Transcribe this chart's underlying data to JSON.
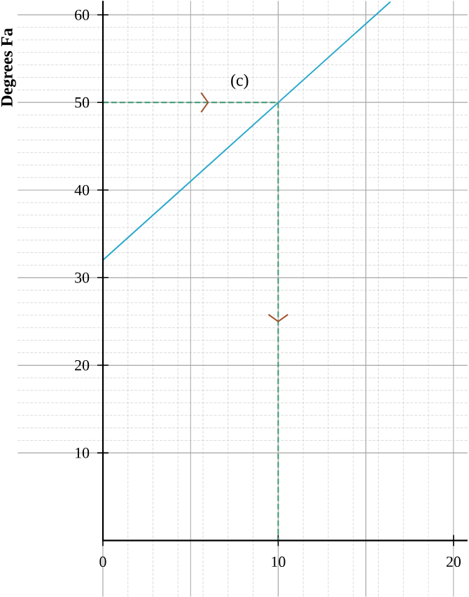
{
  "chart_data": {
    "type": "line",
    "ylabel": "Degrees Fa",
    "series": [
      {
        "x": [
          0,
          16.4
        ],
        "values": [
          32,
          61.5
        ],
        "color": "#2aa8cc"
      },
      {
        "x": [
          0,
          10,
          10
        ],
        "values": [
          50,
          50,
          0
        ],
        "color": "#3d9970",
        "line_style": "dashed"
      }
    ],
    "xlim": [
      -4.86,
      20.8
    ],
    "ylim": [
      -6.4,
      61.6
    ],
    "xticks": [
      0,
      10,
      20
    ],
    "yticks": [
      10,
      20,
      30,
      40,
      50,
      60
    ],
    "grid": true,
    "annotations": [
      "(c)"
    ]
  }
}
